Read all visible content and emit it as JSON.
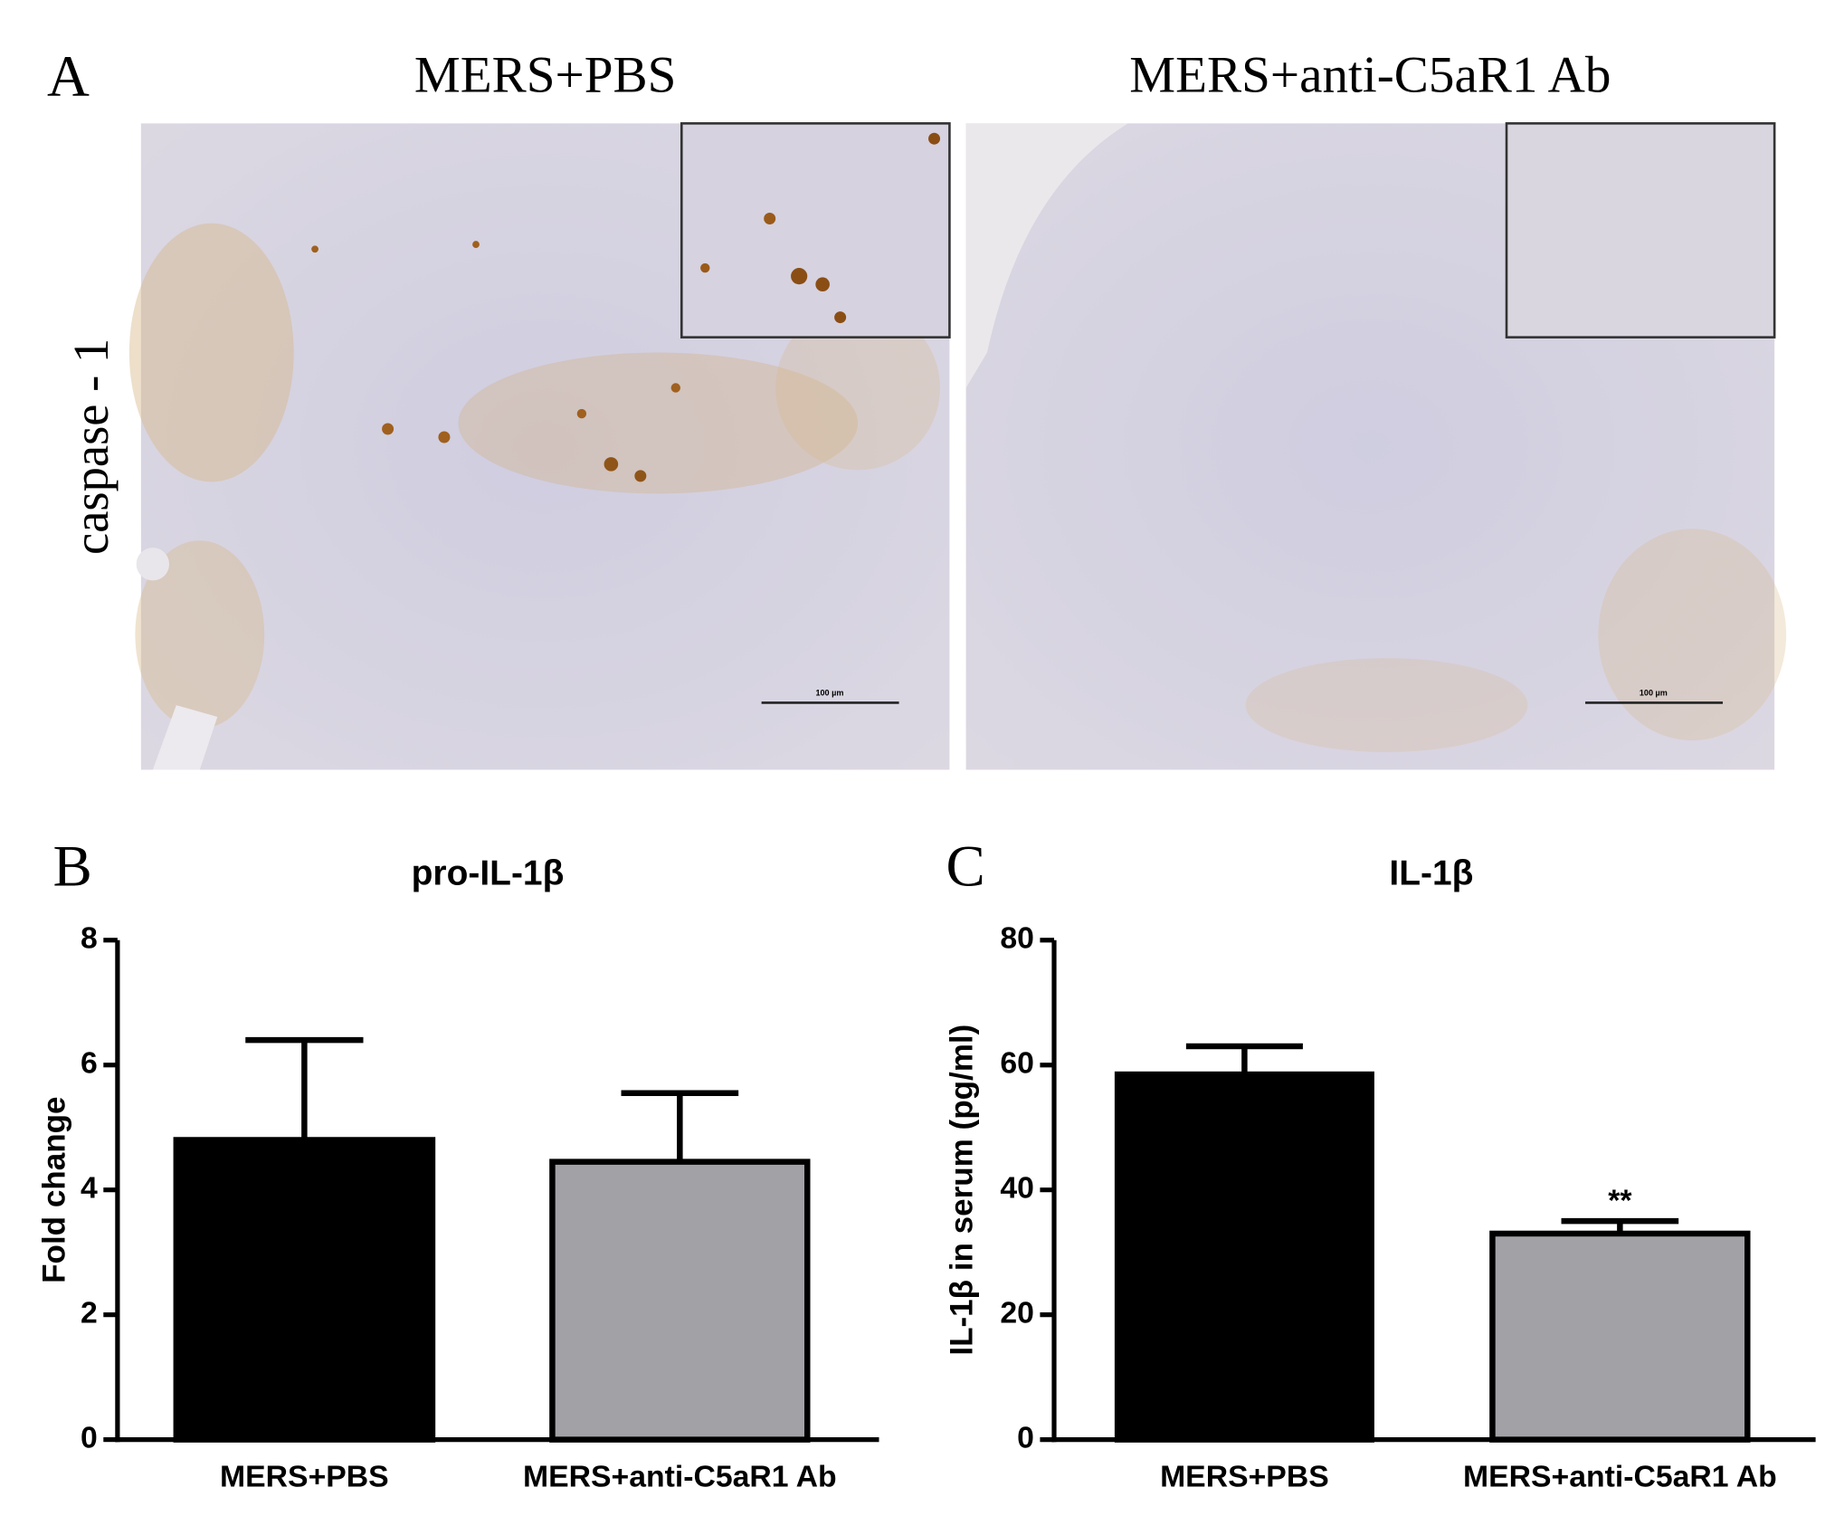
{
  "panel_a": {
    "letter": "A",
    "titles": [
      "MERS+PBS",
      "MERS+anti-C5aR1 Ab"
    ],
    "row_label": "caspase - 1",
    "scale_labels": [
      "100 µm",
      "100 µm"
    ]
  },
  "panel_letters": [
    "B",
    "C"
  ],
  "chart_data": [
    {
      "type": "bar",
      "title": "pro-IL-1β",
      "y_label": "Fold change",
      "categories": [
        "MERS+PBS",
        "MERS+anti-C5aR1 Ab"
      ],
      "values": [
        4.8,
        4.45
      ],
      "errors": [
        1.6,
        1.1
      ],
      "colors": [
        "#000000",
        "#a2a1a6"
      ],
      "ylim": [
        0,
        8
      ],
      "yticks": [
        0,
        2,
        4,
        6,
        8
      ]
    },
    {
      "type": "bar",
      "title": "IL-1β",
      "y_label": "IL-1β  in serum (pg/ml)",
      "categories": [
        "MERS+PBS",
        "MERS+anti-C5aR1 Ab"
      ],
      "values": [
        58.5,
        33
      ],
      "errors": [
        4.5,
        2
      ],
      "colors": [
        "#000000",
        "#a2a1a6"
      ],
      "ylim": [
        0,
        80
      ],
      "yticks": [
        0,
        20,
        40,
        60,
        80
      ],
      "annotations": [
        "**"
      ]
    }
  ]
}
